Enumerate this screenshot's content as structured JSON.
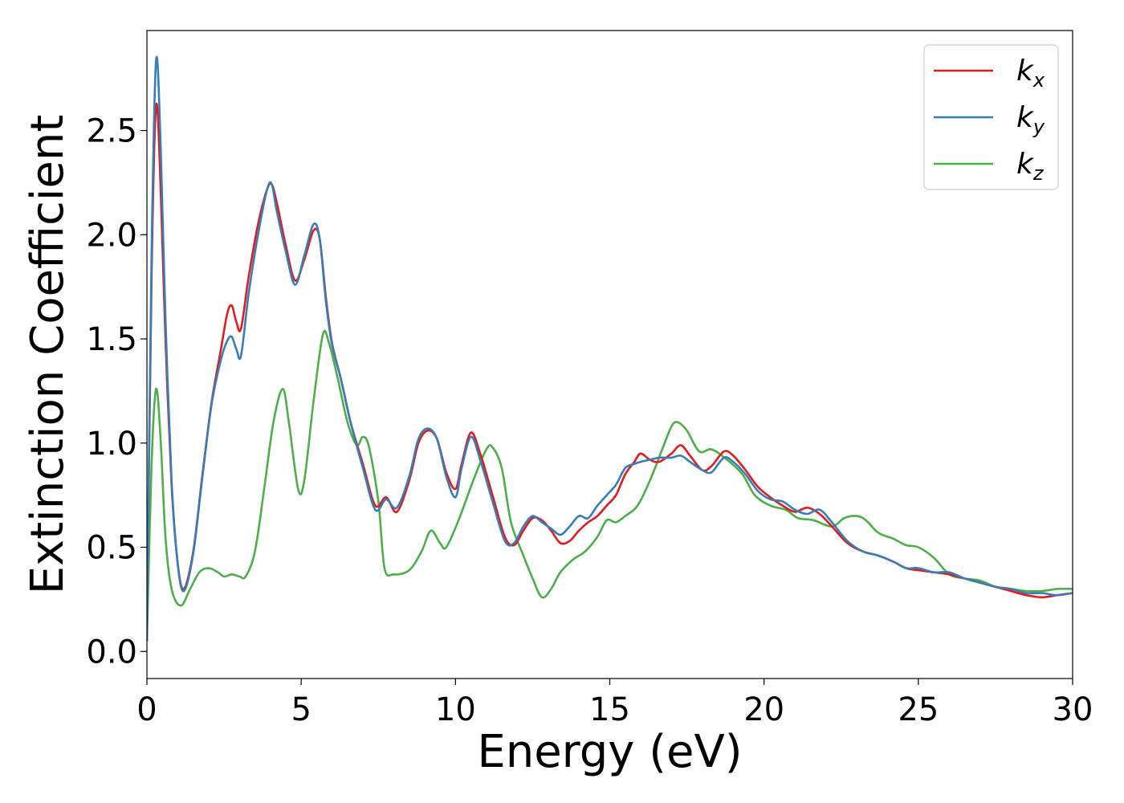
{
  "chart_data": {
    "type": "line",
    "title": "",
    "xlabel": "Energy (eV)",
    "ylabel": "Extinction Coefficient",
    "xlim": [
      0,
      30
    ],
    "ylim": [
      -0.13,
      2.98
    ],
    "grid": false,
    "legend_position": "top-right",
    "x_ticks": [
      0,
      5,
      10,
      15,
      20,
      25,
      30
    ],
    "x_tick_labels": [
      "0",
      "5",
      "10",
      "15",
      "20",
      "25",
      "30"
    ],
    "y_ticks": [
      0.0,
      0.5,
      1.0,
      1.5,
      2.0,
      2.5
    ],
    "y_tick_labels": [
      "0.0",
      "0.5",
      "1.0",
      "1.5",
      "2.0",
      "2.5"
    ],
    "series": [
      {
        "name": "k_x",
        "legend_main": "k",
        "legend_sub": "x",
        "color": "#e41a1c",
        "points": [
          [
            0,
            0.05
          ],
          [
            0.15,
            1.8
          ],
          [
            0.3,
            2.62
          ],
          [
            0.45,
            2.2
          ],
          [
            0.6,
            1.5
          ],
          [
            0.8,
            0.8
          ],
          [
            1.0,
            0.42
          ],
          [
            1.2,
            0.3
          ],
          [
            1.5,
            0.48
          ],
          [
            1.8,
            0.85
          ],
          [
            2.1,
            1.2
          ],
          [
            2.4,
            1.45
          ],
          [
            2.6,
            1.62
          ],
          [
            2.75,
            1.66
          ],
          [
            2.9,
            1.58
          ],
          [
            3.05,
            1.55
          ],
          [
            3.3,
            1.8
          ],
          [
            3.6,
            2.05
          ],
          [
            3.9,
            2.22
          ],
          [
            4.05,
            2.24
          ],
          [
            4.2,
            2.16
          ],
          [
            4.5,
            1.95
          ],
          [
            4.8,
            1.78
          ],
          [
            5.1,
            1.88
          ],
          [
            5.4,
            2.02
          ],
          [
            5.6,
            1.98
          ],
          [
            5.8,
            1.7
          ],
          [
            6.0,
            1.48
          ],
          [
            6.3,
            1.3
          ],
          [
            6.6,
            1.1
          ],
          [
            7.0,
            0.9
          ],
          [
            7.4,
            0.7
          ],
          [
            7.75,
            0.74
          ],
          [
            8.1,
            0.67
          ],
          [
            8.5,
            0.82
          ],
          [
            8.8,
            1.0
          ],
          [
            9.1,
            1.06
          ],
          [
            9.4,
            1.02
          ],
          [
            9.7,
            0.86
          ],
          [
            10.0,
            0.78
          ],
          [
            10.2,
            0.9
          ],
          [
            10.5,
            1.05
          ],
          [
            10.8,
            0.95
          ],
          [
            11.2,
            0.75
          ],
          [
            11.6,
            0.55
          ],
          [
            11.9,
            0.51
          ],
          [
            12.2,
            0.58
          ],
          [
            12.5,
            0.64
          ],
          [
            12.8,
            0.63
          ],
          [
            13.1,
            0.58
          ],
          [
            13.4,
            0.52
          ],
          [
            13.7,
            0.53
          ],
          [
            14.0,
            0.58
          ],
          [
            14.3,
            0.62
          ],
          [
            14.6,
            0.65
          ],
          [
            14.9,
            0.7
          ],
          [
            15.2,
            0.75
          ],
          [
            15.5,
            0.85
          ],
          [
            15.8,
            0.91
          ],
          [
            16.0,
            0.95
          ],
          [
            16.3,
            0.92
          ],
          [
            16.6,
            0.91
          ],
          [
            17.0,
            0.95
          ],
          [
            17.3,
            0.99
          ],
          [
            17.6,
            0.94
          ],
          [
            18.0,
            0.87
          ],
          [
            18.3,
            0.89
          ],
          [
            18.7,
            0.96
          ],
          [
            19.0,
            0.94
          ],
          [
            19.4,
            0.87
          ],
          [
            19.8,
            0.79
          ],
          [
            20.2,
            0.74
          ],
          [
            20.6,
            0.7
          ],
          [
            21.0,
            0.67
          ],
          [
            21.4,
            0.69
          ],
          [
            21.8,
            0.66
          ],
          [
            22.2,
            0.6
          ],
          [
            22.7,
            0.52
          ],
          [
            23.2,
            0.48
          ],
          [
            23.7,
            0.46
          ],
          [
            24.2,
            0.43
          ],
          [
            24.6,
            0.4
          ],
          [
            25.0,
            0.39
          ],
          [
            25.5,
            0.38
          ],
          [
            26.0,
            0.37
          ],
          [
            26.5,
            0.35
          ],
          [
            27.0,
            0.33
          ],
          [
            27.5,
            0.31
          ],
          [
            28.0,
            0.29
          ],
          [
            28.5,
            0.27
          ],
          [
            29.0,
            0.26
          ],
          [
            29.5,
            0.27
          ],
          [
            30,
            0.28
          ]
        ]
      },
      {
        "name": "k_y",
        "legend_main": "k",
        "legend_sub": "y",
        "color": "#377eb8",
        "points": [
          [
            0,
            0.05
          ],
          [
            0.15,
            1.9
          ],
          [
            0.3,
            2.84
          ],
          [
            0.45,
            2.4
          ],
          [
            0.6,
            1.6
          ],
          [
            0.8,
            0.82
          ],
          [
            1.0,
            0.42
          ],
          [
            1.2,
            0.29
          ],
          [
            1.5,
            0.47
          ],
          [
            1.8,
            0.84
          ],
          [
            2.1,
            1.19
          ],
          [
            2.4,
            1.4
          ],
          [
            2.6,
            1.49
          ],
          [
            2.75,
            1.51
          ],
          [
            2.9,
            1.45
          ],
          [
            3.05,
            1.42
          ],
          [
            3.3,
            1.72
          ],
          [
            3.6,
            2.0
          ],
          [
            3.9,
            2.22
          ],
          [
            4.05,
            2.24
          ],
          [
            4.2,
            2.12
          ],
          [
            4.5,
            1.92
          ],
          [
            4.8,
            1.76
          ],
          [
            5.1,
            1.9
          ],
          [
            5.4,
            2.05
          ],
          [
            5.6,
            1.98
          ],
          [
            5.8,
            1.68
          ],
          [
            6.0,
            1.47
          ],
          [
            6.3,
            1.3
          ],
          [
            6.6,
            1.1
          ],
          [
            7.0,
            0.88
          ],
          [
            7.4,
            0.68
          ],
          [
            7.75,
            0.73
          ],
          [
            8.1,
            0.69
          ],
          [
            8.5,
            0.84
          ],
          [
            8.8,
            1.02
          ],
          [
            9.1,
            1.07
          ],
          [
            9.4,
            1.02
          ],
          [
            9.7,
            0.84
          ],
          [
            10.0,
            0.74
          ],
          [
            10.2,
            0.88
          ],
          [
            10.5,
            1.03
          ],
          [
            10.8,
            0.92
          ],
          [
            11.2,
            0.72
          ],
          [
            11.6,
            0.53
          ],
          [
            11.9,
            0.52
          ],
          [
            12.2,
            0.6
          ],
          [
            12.5,
            0.65
          ],
          [
            12.8,
            0.62
          ],
          [
            13.1,
            0.59
          ],
          [
            13.4,
            0.56
          ],
          [
            13.7,
            0.6
          ],
          [
            14.0,
            0.65
          ],
          [
            14.3,
            0.64
          ],
          [
            14.6,
            0.7
          ],
          [
            14.9,
            0.75
          ],
          [
            15.2,
            0.8
          ],
          [
            15.5,
            0.88
          ],
          [
            15.8,
            0.9
          ],
          [
            16.0,
            0.91
          ],
          [
            16.3,
            0.92
          ],
          [
            16.6,
            0.93
          ],
          [
            17.0,
            0.93
          ],
          [
            17.3,
            0.94
          ],
          [
            17.6,
            0.91
          ],
          [
            18.0,
            0.87
          ],
          [
            18.3,
            0.86
          ],
          [
            18.7,
            0.93
          ],
          [
            19.0,
            0.91
          ],
          [
            19.4,
            0.85
          ],
          [
            19.8,
            0.77
          ],
          [
            20.2,
            0.73
          ],
          [
            20.6,
            0.72
          ],
          [
            21.0,
            0.68
          ],
          [
            21.4,
            0.66
          ],
          [
            21.8,
            0.68
          ],
          [
            22.2,
            0.62
          ],
          [
            22.7,
            0.53
          ],
          [
            23.2,
            0.48
          ],
          [
            23.7,
            0.46
          ],
          [
            24.2,
            0.43
          ],
          [
            24.6,
            0.4
          ],
          [
            25.0,
            0.4
          ],
          [
            25.5,
            0.38
          ],
          [
            26.0,
            0.38
          ],
          [
            26.5,
            0.35
          ],
          [
            27.0,
            0.33
          ],
          [
            27.5,
            0.31
          ],
          [
            28.0,
            0.3
          ],
          [
            28.5,
            0.28
          ],
          [
            29.0,
            0.28
          ],
          [
            29.5,
            0.27
          ],
          [
            30,
            0.28
          ]
        ]
      },
      {
        "name": "k_z",
        "legend_main": "k",
        "legend_sub": "z",
        "color": "#4daf4a",
        "points": [
          [
            0,
            0.05
          ],
          [
            0.15,
            0.9
          ],
          [
            0.3,
            1.26
          ],
          [
            0.45,
            1.0
          ],
          [
            0.6,
            0.55
          ],
          [
            0.8,
            0.3
          ],
          [
            1.1,
            0.22
          ],
          [
            1.4,
            0.3
          ],
          [
            1.7,
            0.38
          ],
          [
            2.0,
            0.4
          ],
          [
            2.3,
            0.38
          ],
          [
            2.5,
            0.36
          ],
          [
            2.75,
            0.37
          ],
          [
            3.0,
            0.36
          ],
          [
            3.2,
            0.36
          ],
          [
            3.5,
            0.48
          ],
          [
            3.8,
            0.78
          ],
          [
            4.1,
            1.1
          ],
          [
            4.4,
            1.26
          ],
          [
            4.6,
            1.1
          ],
          [
            4.9,
            0.78
          ],
          [
            5.1,
            0.82
          ],
          [
            5.4,
            1.2
          ],
          [
            5.7,
            1.52
          ],
          [
            5.9,
            1.48
          ],
          [
            6.2,
            1.3
          ],
          [
            6.5,
            1.1
          ],
          [
            6.8,
            0.99
          ],
          [
            7.0,
            1.03
          ],
          [
            7.2,
            0.98
          ],
          [
            7.5,
            0.72
          ],
          [
            7.7,
            0.4
          ],
          [
            8.0,
            0.37
          ],
          [
            8.5,
            0.39
          ],
          [
            8.9,
            0.48
          ],
          [
            9.2,
            0.58
          ],
          [
            9.5,
            0.52
          ],
          [
            9.7,
            0.5
          ],
          [
            10.1,
            0.63
          ],
          [
            10.6,
            0.83
          ],
          [
            11.0,
            0.97
          ],
          [
            11.2,
            0.98
          ],
          [
            11.5,
            0.88
          ],
          [
            11.8,
            0.62
          ],
          [
            12.2,
            0.46
          ],
          [
            12.5,
            0.35
          ],
          [
            12.8,
            0.26
          ],
          [
            13.1,
            0.3
          ],
          [
            13.4,
            0.38
          ],
          [
            13.8,
            0.44
          ],
          [
            14.2,
            0.48
          ],
          [
            14.6,
            0.55
          ],
          [
            14.9,
            0.63
          ],
          [
            15.2,
            0.62
          ],
          [
            15.5,
            0.65
          ],
          [
            15.9,
            0.7
          ],
          [
            16.3,
            0.82
          ],
          [
            16.7,
            0.97
          ],
          [
            17.0,
            1.08
          ],
          [
            17.2,
            1.1
          ],
          [
            17.5,
            1.06
          ],
          [
            17.9,
            0.96
          ],
          [
            18.3,
            0.97
          ],
          [
            18.8,
            0.92
          ],
          [
            19.3,
            0.85
          ],
          [
            19.7,
            0.75
          ],
          [
            20.2,
            0.7
          ],
          [
            20.7,
            0.68
          ],
          [
            21.1,
            0.64
          ],
          [
            21.6,
            0.63
          ],
          [
            22.2,
            0.6
          ],
          [
            22.6,
            0.64
          ],
          [
            23.0,
            0.65
          ],
          [
            23.3,
            0.63
          ],
          [
            23.7,
            0.57
          ],
          [
            24.2,
            0.54
          ],
          [
            24.6,
            0.51
          ],
          [
            25.0,
            0.5
          ],
          [
            25.5,
            0.45
          ],
          [
            26.0,
            0.37
          ],
          [
            26.5,
            0.35
          ],
          [
            27.0,
            0.34
          ],
          [
            27.5,
            0.31
          ],
          [
            28.0,
            0.3
          ],
          [
            28.5,
            0.29
          ],
          [
            29.0,
            0.29
          ],
          [
            29.5,
            0.3
          ],
          [
            30,
            0.3
          ]
        ]
      }
    ]
  }
}
